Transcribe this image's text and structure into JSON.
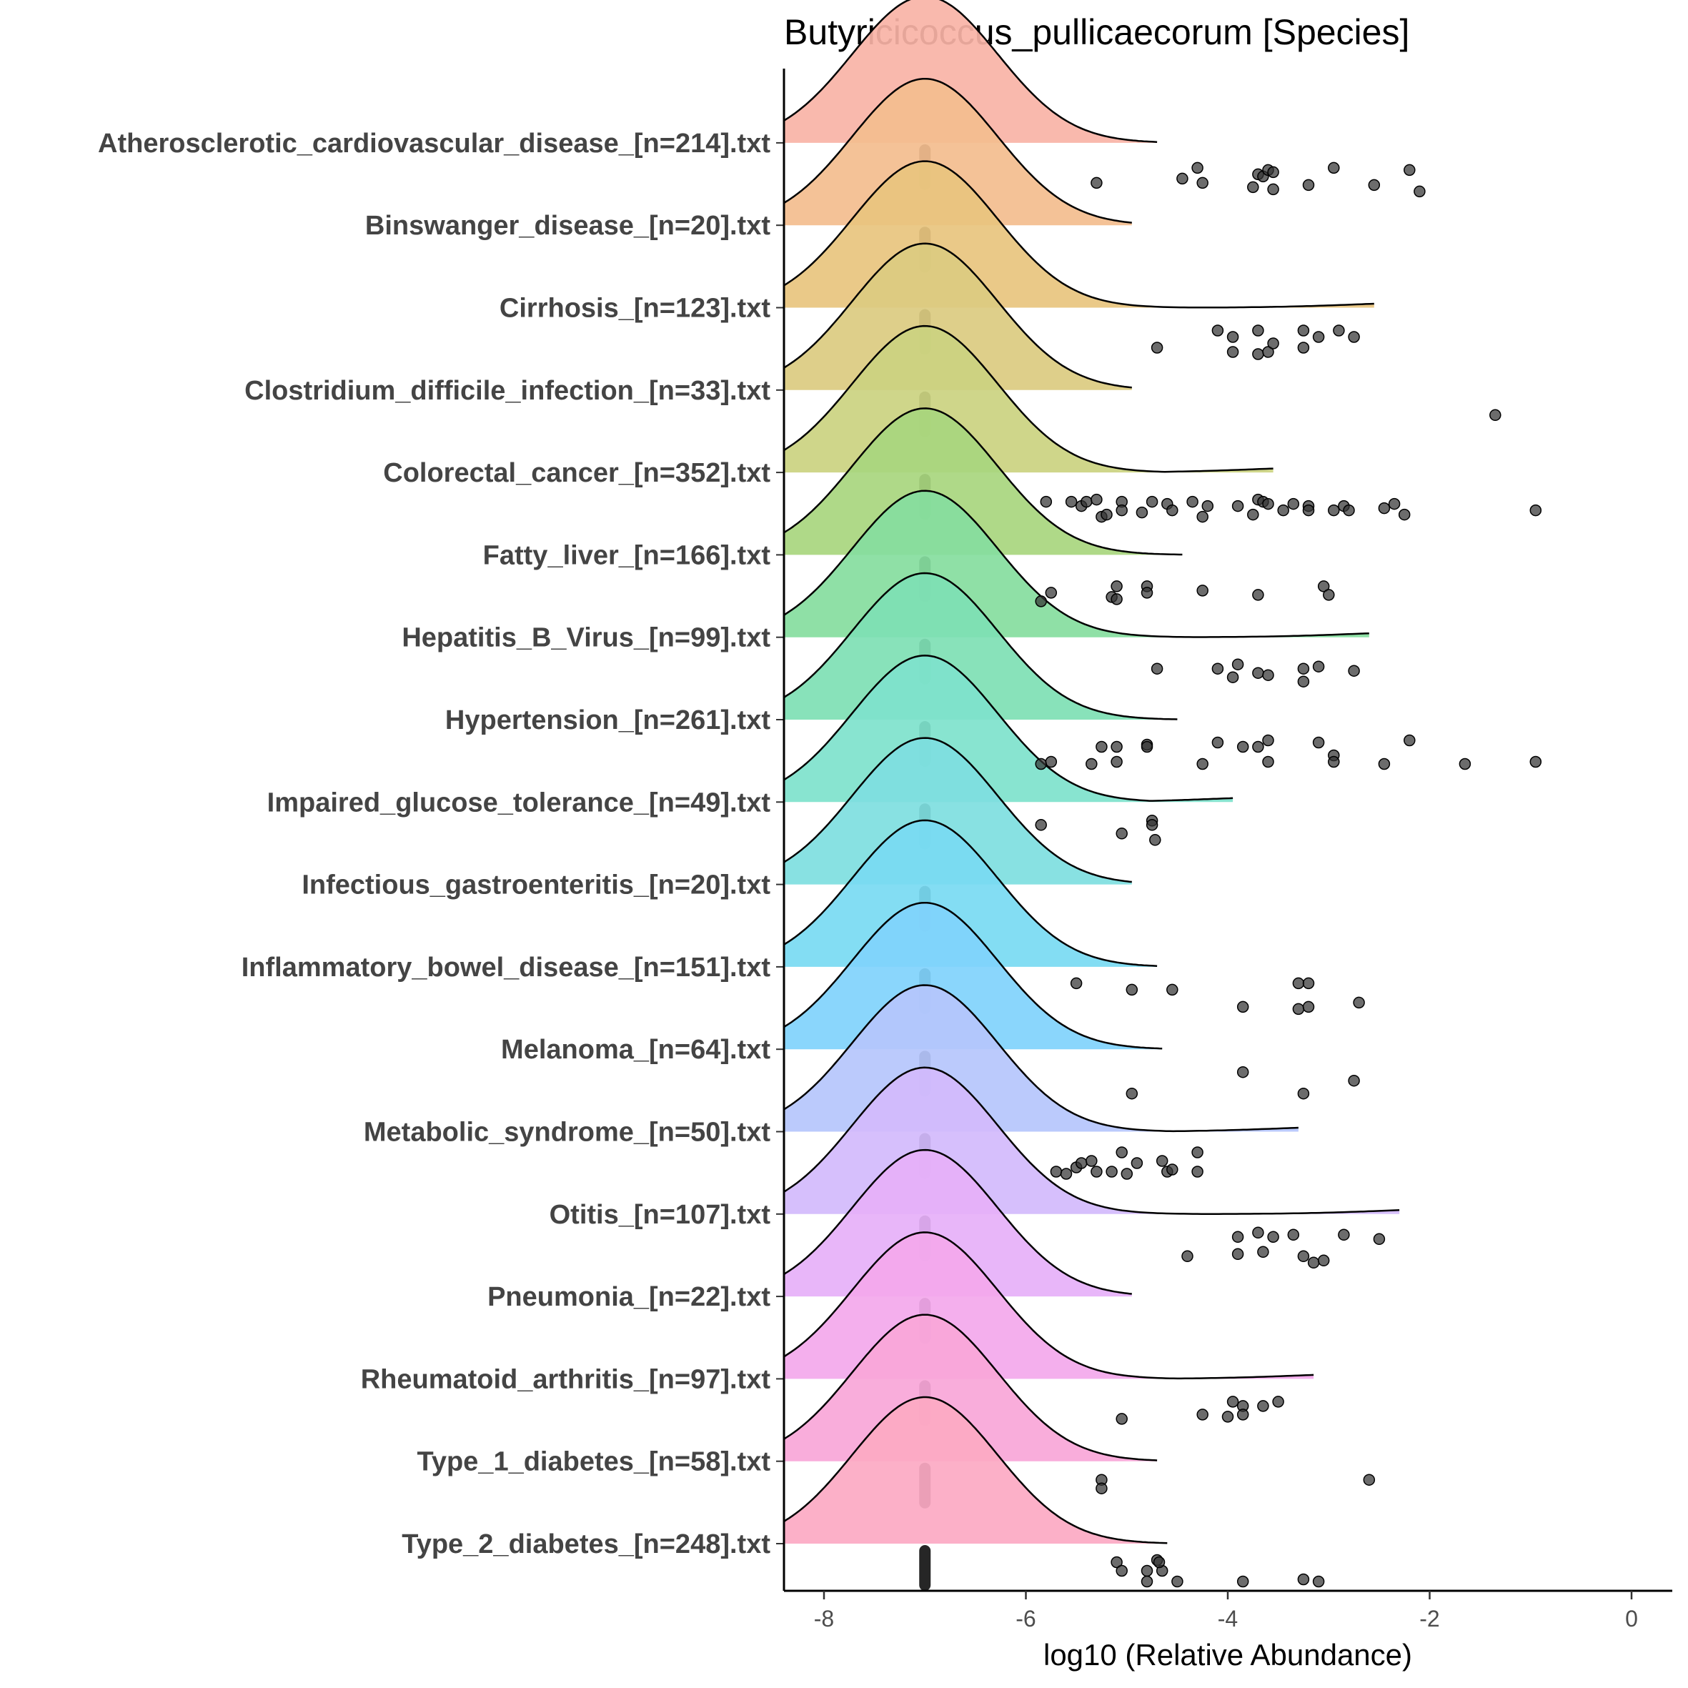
{
  "chart_data": {
    "type": "ridgeline",
    "title": "Butyricicoccus_pullicaecorum [Species]",
    "xlabel": "log10 (Relative Abundance)",
    "ylabel": "",
    "xlim": [
      -8.4,
      0.4
    ],
    "xticks": [
      -8,
      -6,
      -4,
      -2,
      0
    ],
    "xtick_labels": [
      "-8",
      "-6",
      "-4",
      "-2",
      "0"
    ],
    "legend": "none",
    "grid": false,
    "baseline_value": -7,
    "categories": [
      {
        "label": "Type_2_diabetes_[n=248].txt",
        "color": "#FCA9C3",
        "density_end": -4.6,
        "tail": false,
        "outliers": [
          [
            -5.1,
            0.9
          ],
          [
            -5.05,
            0.7
          ],
          [
            -4.8,
            0.7
          ],
          [
            -4.7,
            0.95
          ],
          [
            -4.65,
            0.7
          ],
          [
            -4.8,
            0.45
          ],
          [
            -4.5,
            0.45
          ],
          [
            -3.85,
            0.45
          ],
          [
            -3.25,
            0.5
          ],
          [
            -3.1,
            0.45
          ],
          [
            -4.68,
            0.9
          ]
        ]
      },
      {
        "label": "Type_1_diabetes_[n=58].txt",
        "color": "#F9A6D8",
        "density_end": -4.7,
        "tail": false,
        "outliers": [
          [
            -5.25,
            0.9
          ],
          [
            -5.25,
            0.7
          ],
          [
            -2.6,
            0.9
          ]
        ]
      },
      {
        "label": "Rheumatoid_arthritis_[n=97].txt",
        "color": "#F3A8EC",
        "density_end": -3.15,
        "tail": true,
        "outliers": [
          [
            -5.05,
            0.4
          ],
          [
            -4.25,
            0.5
          ],
          [
            -3.95,
            0.8
          ],
          [
            -3.85,
            0.7
          ],
          [
            -4.0,
            0.45
          ],
          [
            -3.85,
            0.5
          ],
          [
            -3.65,
            0.7
          ],
          [
            -3.5,
            0.8
          ]
        ]
      },
      {
        "label": "Pneumonia_[n=22].txt",
        "color": "#E6B0F9",
        "density_end": -4.95,
        "tail": false,
        "outliers": []
      },
      {
        "label": "Otitis_[n=107].txt",
        "color": "#D3BAFC",
        "density_end": -2.3,
        "tail": true,
        "outliers": [
          [
            -4.4,
            0.35
          ],
          [
            -3.9,
            0.8
          ],
          [
            -3.9,
            0.4
          ],
          [
            -3.7,
            0.9
          ],
          [
            -3.65,
            0.45
          ],
          [
            -3.55,
            0.8
          ],
          [
            -3.35,
            0.85
          ],
          [
            -3.25,
            0.35
          ],
          [
            -3.15,
            0.2
          ],
          [
            -3.05,
            0.25
          ],
          [
            -2.85,
            0.85
          ],
          [
            -2.5,
            0.75
          ]
        ]
      },
      {
        "label": "Metabolic_syndrome_[n=50].txt",
        "color": "#B5C6FC",
        "density_end": -3.3,
        "tail": true,
        "outliers": [
          [
            -5.7,
            0.4
          ],
          [
            -5.6,
            0.35
          ],
          [
            -5.5,
            0.5
          ],
          [
            -5.45,
            0.6
          ],
          [
            -5.35,
            0.65
          ],
          [
            -5.3,
            0.4
          ],
          [
            -5.15,
            0.4
          ],
          [
            -5.05,
            0.85
          ],
          [
            -5.0,
            0.35
          ],
          [
            -4.9,
            0.6
          ],
          [
            -4.65,
            0.65
          ],
          [
            -4.6,
            0.4
          ],
          [
            -4.55,
            0.45
          ],
          [
            -4.3,
            0.4
          ],
          [
            -4.3,
            0.85
          ]
        ]
      },
      {
        "label": "Melanoma_[n=64].txt",
        "color": "#80D2FC",
        "density_end": -4.65,
        "tail": false,
        "outliers": [
          [
            -4.95,
            0.3
          ],
          [
            -3.85,
            0.8
          ],
          [
            -3.25,
            0.3
          ],
          [
            -2.75,
            0.6
          ]
        ]
      },
      {
        "label": "Inflammatory_bowel_disease_[n=151].txt",
        "color": "#78DAF2",
        "density_end": -4.7,
        "tail": false,
        "outliers": [
          [
            -5.5,
            0.95
          ],
          [
            -4.95,
            0.8
          ],
          [
            -4.55,
            0.8
          ],
          [
            -3.85,
            0.4
          ],
          [
            -3.3,
            0.95
          ],
          [
            -3.3,
            0.35
          ],
          [
            -3.2,
            0.95
          ],
          [
            -3.2,
            0.4
          ],
          [
            -2.7,
            0.5
          ]
        ]
      },
      {
        "label": "Infectious_gastroenteritis_[n=20].txt",
        "color": "#7EDEE0",
        "density_end": -4.95,
        "tail": false,
        "outliers": []
      },
      {
        "label": "Impaired_glucose_tolerance_[n=49].txt",
        "color": "#7EE2CC",
        "density_end": -3.95,
        "tail": true,
        "outliers": [
          [
            -5.85,
            0.8
          ],
          [
            -5.05,
            0.6
          ],
          [
            -4.75,
            0.9
          ],
          [
            -4.75,
            0.8
          ],
          [
            -4.72,
            0.45
          ]
        ]
      },
      {
        "label": "Hypertension_[n=261].txt",
        "color": "#7EE0B4",
        "density_end": -4.5,
        "tail": false,
        "outliers": [
          [
            -5.85,
            0.3
          ],
          [
            -5.75,
            0.35
          ],
          [
            -5.35,
            0.3
          ],
          [
            -5.25,
            0.7
          ],
          [
            -5.1,
            0.7
          ],
          [
            -5.1,
            0.35
          ],
          [
            -4.8,
            0.75
          ],
          [
            -4.8,
            0.7
          ],
          [
            -4.25,
            0.3
          ],
          [
            -4.1,
            0.8
          ],
          [
            -3.85,
            0.7
          ],
          [
            -3.7,
            0.7
          ],
          [
            -3.6,
            0.85
          ],
          [
            -3.6,
            0.35
          ],
          [
            -3.1,
            0.8
          ],
          [
            -2.95,
            0.5
          ],
          [
            -2.95,
            0.35
          ],
          [
            -2.45,
            0.3
          ],
          [
            -2.2,
            0.85
          ],
          [
            -1.65,
            0.3
          ],
          [
            -0.95,
            0.35
          ]
        ]
      },
      {
        "label": "Hepatitis_B_Virus_[n=99].txt",
        "color": "#86DD9E",
        "density_end": -2.6,
        "tail": true,
        "outliers": [
          [
            -4.7,
            0.6
          ],
          [
            -4.1,
            0.6
          ],
          [
            -3.95,
            0.4
          ],
          [
            -3.9,
            0.7
          ],
          [
            -3.7,
            0.5
          ],
          [
            -3.6,
            0.45
          ],
          [
            -3.25,
            0.6
          ],
          [
            -3.25,
            0.3
          ],
          [
            -3.1,
            0.65
          ],
          [
            -2.75,
            0.55
          ]
        ]
      },
      {
        "label": "Fatty_liver_[n=166].txt",
        "color": "#A8D67E",
        "density_end": -4.45,
        "tail": false,
        "outliers": [
          [
            -5.85,
            0.25
          ],
          [
            -5.75,
            0.45
          ],
          [
            -5.15,
            0.35
          ],
          [
            -5.1,
            0.6
          ],
          [
            -5.1,
            0.3
          ],
          [
            -4.8,
            0.6
          ],
          [
            -4.8,
            0.45
          ],
          [
            -4.25,
            0.5
          ],
          [
            -3.7,
            0.4
          ],
          [
            -3.05,
            0.6
          ],
          [
            -3.0,
            0.4
          ]
        ]
      },
      {
        "label": "Colorectal_cancer_[n=352].txt",
        "color": "#CBD280",
        "density_end": -3.55,
        "tail": true,
        "outliers": [
          [
            -5.8,
            0.65
          ],
          [
            -5.55,
            0.65
          ],
          [
            -5.45,
            0.55
          ],
          [
            -5.4,
            0.65
          ],
          [
            -5.3,
            0.7
          ],
          [
            -5.25,
            0.3
          ],
          [
            -5.2,
            0.35
          ],
          [
            -5.05,
            0.65
          ],
          [
            -5.05,
            0.45
          ],
          [
            -4.85,
            0.4
          ],
          [
            -4.75,
            0.65
          ],
          [
            -4.6,
            0.6
          ],
          [
            -4.55,
            0.45
          ],
          [
            -4.35,
            0.65
          ],
          [
            -4.2,
            0.55
          ],
          [
            -4.25,
            0.3
          ],
          [
            -3.9,
            0.55
          ],
          [
            -3.75,
            0.35
          ],
          [
            -3.7,
            0.7
          ],
          [
            -3.65,
            0.65
          ],
          [
            -3.6,
            0.6
          ],
          [
            -3.45,
            0.45
          ],
          [
            -3.35,
            0.6
          ],
          [
            -3.2,
            0.55
          ],
          [
            -3.2,
            0.45
          ],
          [
            -2.95,
            0.45
          ],
          [
            -2.85,
            0.55
          ],
          [
            -2.8,
            0.45
          ],
          [
            -2.45,
            0.5
          ],
          [
            -2.35,
            0.6
          ],
          [
            -2.25,
            0.35
          ],
          [
            -0.95,
            0.45
          ]
        ]
      },
      {
        "label": "Clostridium_difficile_infection_[n=33].txt",
        "color": "#DBCB80",
        "density_end": -4.95,
        "tail": false,
        "outliers": [
          [
            -1.35,
            0.75
          ]
        ]
      },
      {
        "label": "Cirrhosis_[n=123].txt",
        "color": "#E8C47E",
        "density_end": -2.55,
        "tail": true,
        "outliers": [
          [
            -4.7,
            0.4
          ],
          [
            -4.1,
            0.8
          ],
          [
            -3.95,
            0.65
          ],
          [
            -3.95,
            0.3
          ],
          [
            -3.7,
            0.8
          ],
          [
            -3.7,
            0.25
          ],
          [
            -3.6,
            0.3
          ],
          [
            -3.55,
            0.5
          ],
          [
            -3.25,
            0.8
          ],
          [
            -3.25,
            0.4
          ],
          [
            -3.1,
            0.65
          ],
          [
            -2.9,
            0.8
          ],
          [
            -2.75,
            0.65
          ]
        ]
      },
      {
        "label": "Binswanger_disease_[n=20].txt",
        "color": "#F3BD8E",
        "density_end": -4.95,
        "tail": false,
        "outliers": []
      },
      {
        "label": "Atherosclerotic_cardiovascular_disease_[n=214].txt",
        "color": "#F8B3A6",
        "density_end": -4.7,
        "tail": false,
        "outliers": [
          [
            -5.3,
            0.4
          ],
          [
            -4.45,
            0.5
          ],
          [
            -4.3,
            0.75
          ],
          [
            -4.25,
            0.4
          ],
          [
            -3.75,
            0.3
          ],
          [
            -3.7,
            0.6
          ],
          [
            -3.65,
            0.55
          ],
          [
            -3.6,
            0.7
          ],
          [
            -3.55,
            0.65
          ],
          [
            -3.55,
            0.25
          ],
          [
            -3.2,
            0.35
          ],
          [
            -2.95,
            0.75
          ],
          [
            -2.55,
            0.35
          ],
          [
            -2.2,
            0.7
          ],
          [
            -2.1,
            0.2
          ]
        ]
      }
    ]
  }
}
